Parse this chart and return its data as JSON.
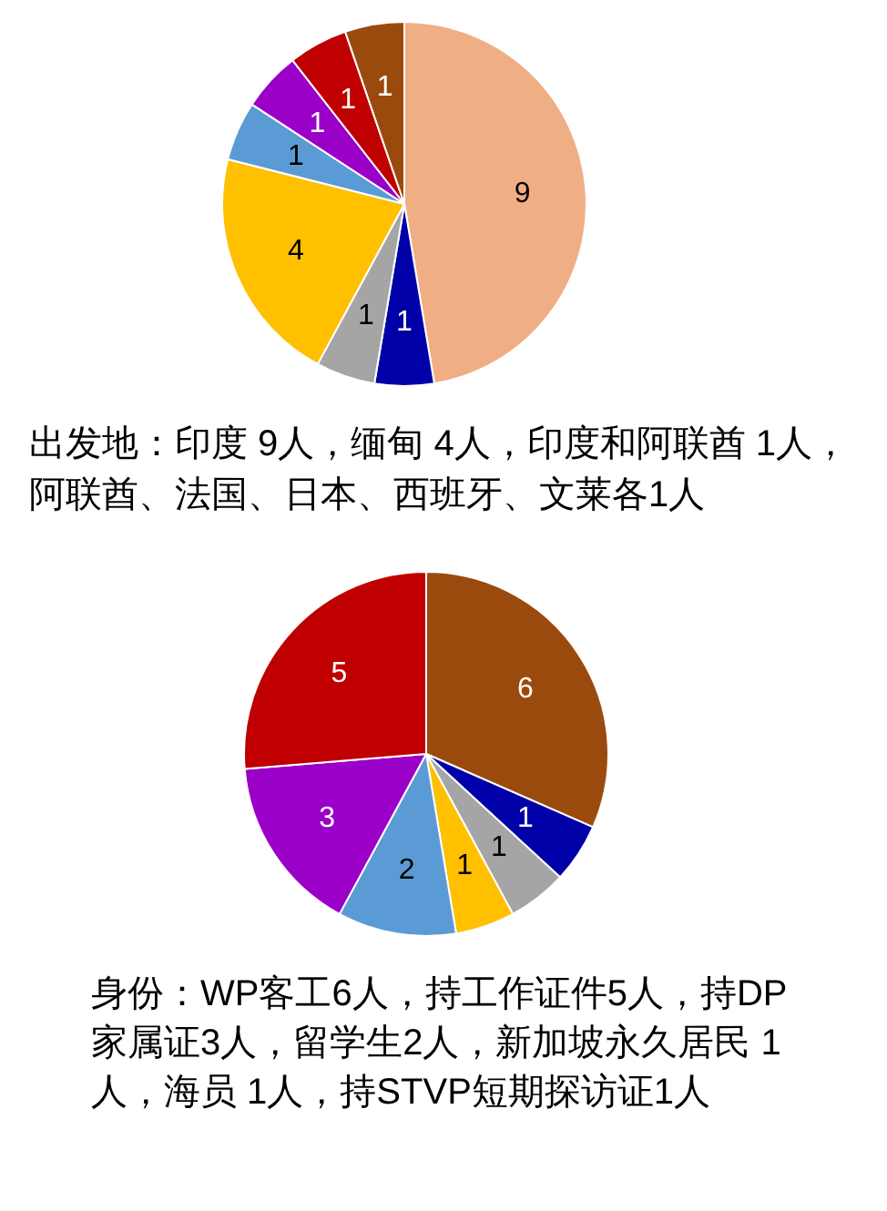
{
  "chart_data": [
    {
      "type": "pie",
      "categories": [
        null,
        null,
        null,
        null,
        null,
        null,
        null,
        null
      ],
      "values": [
        9,
        1,
        1,
        4,
        1,
        1,
        1,
        1
      ],
      "colors": [
        "#f0ae84",
        "#0000a8",
        "#a5a5a5",
        "#ffc000",
        "#5b9bd5",
        "#9a00c8",
        "#c00000",
        "#9b4a0e"
      ],
      "data_labels": true,
      "annotations": [
        "出发地：印度 9人，缅甸 4人，印度和阿联酋 1人，阿联酋、法国、日本、西班牙、文莱各1人"
      ]
    },
    {
      "type": "pie",
      "categories": [
        null,
        null,
        null,
        null,
        null,
        null,
        null
      ],
      "values": [
        6,
        1,
        1,
        1,
        2,
        3,
        5
      ],
      "colors": [
        "#9b4a0e",
        "#0000a8",
        "#a5a5a5",
        "#ffc000",
        "#5b9bd5",
        "#9a00c8",
        "#c00000"
      ],
      "data_labels": true,
      "annotations": [
        "身份：WP客工6人，持工作证件5人，持DP家属证3人，留学生2人，新加坡永久居民 1人，海员 1人，持STVP短期探访证1人"
      ]
    }
  ]
}
